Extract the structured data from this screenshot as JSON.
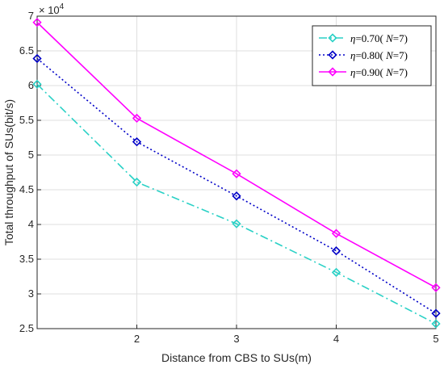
{
  "chart_data": {
    "type": "line",
    "title": "",
    "xlabel": "Distance from CBS to SUs(m)",
    "ylabel": "Total throughput of SUs(bit/s)",
    "y_multiplier": "× 10",
    "y_exponent": "4",
    "x": [
      1,
      2,
      3,
      4,
      5
    ],
    "xlim": [
      1,
      5
    ],
    "ylim": [
      2.5,
      7
    ],
    "xticks": [
      "2",
      "3",
      "4",
      "5"
    ],
    "yticks": [
      "2.5",
      "3",
      "3.5",
      "4",
      "4.5",
      "5",
      "5.5",
      "6",
      "6.5",
      "7"
    ],
    "grid": true,
    "legend_position": "top-right",
    "series": [
      {
        "name": "η=0.70( N=7)",
        "eta_symbol": "η",
        "eta_value": "=0.70(",
        "n_symbol": "N",
        "n_value": "=7)",
        "color": "#2ad1c6",
        "line_style": "dash-dot",
        "marker": "diamond-open",
        "values": [
          6.02,
          4.61,
          4.01,
          3.31,
          2.57
        ]
      },
      {
        "name": "η=0.80( N=7)",
        "eta_symbol": "η",
        "eta_value": "=0.80(",
        "n_symbol": "N",
        "n_value": "=7)",
        "color": "#0000c8",
        "line_style": "dotted",
        "marker": "diamond-open",
        "values": [
          6.39,
          5.19,
          4.41,
          3.62,
          2.72
        ]
      },
      {
        "name": "η=0.90( N=7)",
        "eta_symbol": "η",
        "eta_value": "=0.90(",
        "n_symbol": "N",
        "n_value": "=7)",
        "color": "#ff00ff",
        "line_style": "solid",
        "marker": "diamond-open",
        "values": [
          6.91,
          5.53,
          4.73,
          3.87,
          3.09
        ]
      }
    ]
  }
}
